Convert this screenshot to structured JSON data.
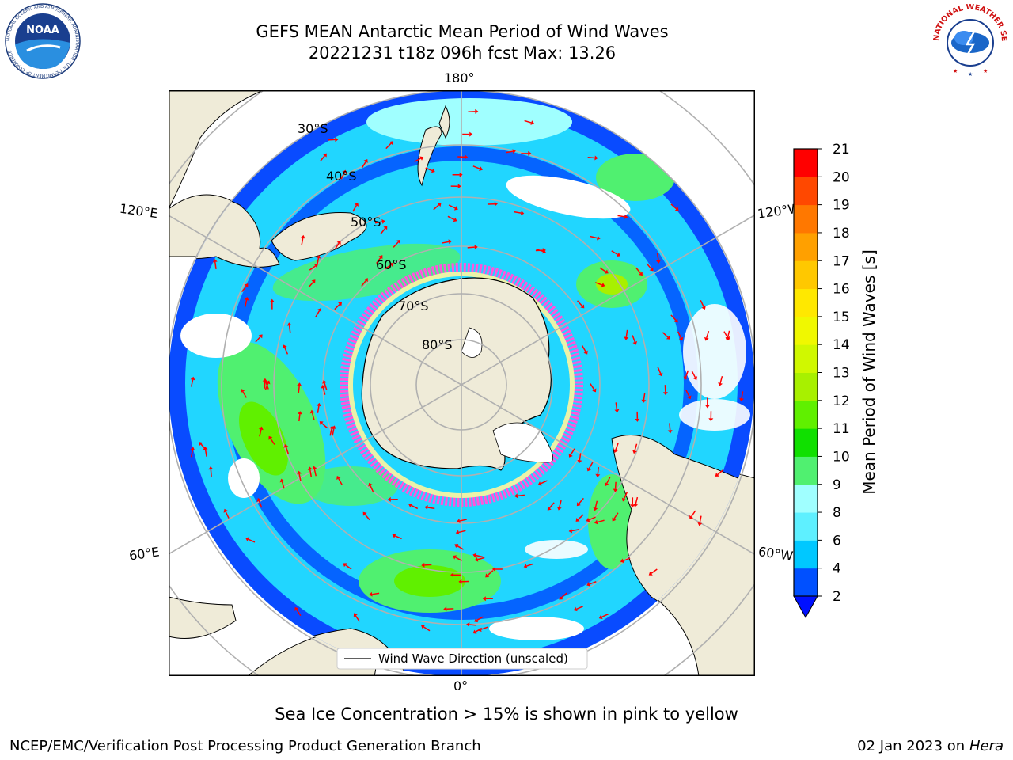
{
  "header": {
    "title_line1": "GEFS MEAN Antarctic Mean Period of Wind Waves",
    "title_line2": "20221231 t18z 096h fcst   Max: 13.26"
  },
  "logos": {
    "noaa_text": "NOAA",
    "noaa_ring_text": "NATIONAL OCEANIC AND ATMOSPHERIC ADMINISTRATION · U.S. DEPARTMENT OF COMMERCE",
    "nws_ring_text": "NATIONAL WEATHER SERVICE"
  },
  "map": {
    "projection": "south polar stereographic",
    "longitude_labels": {
      "top": "180°",
      "bottom": "0°",
      "left_upper": "120°E",
      "left_lower": "60°E",
      "right_upper": "120°W",
      "right_lower": "60°W"
    },
    "latitude_labels": [
      "30°S",
      "40°S",
      "50°S",
      "60°S",
      "70°S",
      "80°S"
    ],
    "legend_label": "Wind Wave Direction (unscaled)",
    "colors": {
      "land": "#efebd8",
      "grid": "#b0b0b0",
      "arrow": "#ff0000",
      "ice_pink": "#ff55dd",
      "ice_yellow": "#fff6a0"
    }
  },
  "colorbar": {
    "label": "Mean Period of Wind Waves [s]",
    "ticks": [
      "2",
      "4",
      "6",
      "8",
      "9",
      "10",
      "11",
      "12",
      "13",
      "14",
      "15",
      "16",
      "17",
      "18",
      "19",
      "20",
      "21"
    ],
    "colors": [
      "#0050ff",
      "#00c8ff",
      "#5ef0ff",
      "#a0ffff",
      "#50f070",
      "#10e000",
      "#60f000",
      "#a8f000",
      "#d0f800",
      "#f0f800",
      "#ffe800",
      "#ffc800",
      "#ffa000",
      "#ff7800",
      "#ff4800",
      "#ff0000"
    ],
    "under_color": "#0010ff"
  },
  "notes": {
    "sea_ice": "Sea Ice Concentration > 15% is shown in pink to yellow"
  },
  "footer": {
    "left": "NCEP/EMC/Verification Post Processing Product Generation Branch",
    "right_date": "02 Jan 2023 on ",
    "right_machine": "Hera"
  }
}
